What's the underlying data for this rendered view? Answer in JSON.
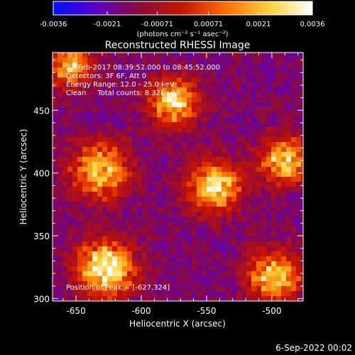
{
  "chart_data": {
    "type": "heatmap",
    "title": "Reconstructed RHESSI Image",
    "xlabel": "Heliocentric X (arcsec)",
    "ylabel": "Heliocentric Y (arcsec)",
    "xlim": [
      -668,
      -476
    ],
    "ylim": [
      298,
      496
    ],
    "x_ticks": [
      -650,
      -600,
      -550,
      -500
    ],
    "y_ticks": [
      300,
      350,
      400,
      450
    ],
    "colorbar": {
      "min": -0.0036,
      "max": 0.0036,
      "tick_values": [
        -0.0036,
        -0.0021,
        -0.00071,
        0.00071,
        0.0021,
        0.0036
      ],
      "tick_labels": [
        "-0.0036",
        "-0.0021",
        "-0.00071",
        "0.00071",
        "0.0021",
        "0.0036"
      ],
      "unit_label": "(photons cm⁻² s⁻¹ asec⁻²)",
      "colors": [
        "#0010ff",
        "#5a00c8",
        "#8c0a3c",
        "#c81400",
        "#ff6e00",
        "#ffd23c",
        "#ffffff"
      ]
    },
    "annotations": [
      "23-Feb-2017 08:39:52.000 to 08:45:52.000",
      "Detectors: 3F 6F, Att 0",
      "Energy Range: 12.0 - 25.0 keV",
      "Clean     Total counts: 8.32E+03"
    ],
    "peak_text": "Position of Peak = [-627,324]",
    "sources": [
      {
        "x": -627,
        "y": 324,
        "sigma": 15,
        "peak": 0.0036
      },
      {
        "x": -544,
        "y": 389,
        "sigma": 14,
        "peak": 0.0029
      },
      {
        "x": -632,
        "y": 402,
        "sigma": 15,
        "peak": 0.0026
      },
      {
        "x": -575,
        "y": 456,
        "sigma": 13,
        "peak": 0.0027
      },
      {
        "x": -490,
        "y": 410,
        "sigma": 13,
        "peak": 0.0026
      },
      {
        "x": -498,
        "y": 318,
        "sigma": 14,
        "peak": 0.0026
      },
      {
        "x": -655,
        "y": 485,
        "sigma": 12,
        "peak": 0.0022
      }
    ],
    "background": -0.0016,
    "footer": "6-Sep-2022 00:02"
  }
}
